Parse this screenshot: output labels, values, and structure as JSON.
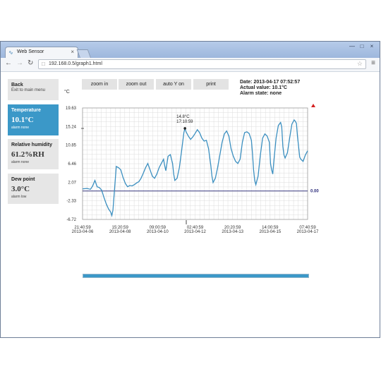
{
  "browser": {
    "tab_title": "Web Sensor",
    "url": "192.168.0.5/graph1.html"
  },
  "sidebar": {
    "back": {
      "title": "Back",
      "subtitle": "Exit to main menu"
    },
    "items": [
      {
        "title": "Temperature",
        "value": "10.1°C",
        "alarm": "alarm none",
        "active": true
      },
      {
        "title": "Relative humidity",
        "value": "61.2%RH",
        "alarm": "alarm none",
        "active": false
      },
      {
        "title": "Dew point",
        "value": "3.0°C",
        "alarm": "alarm low",
        "active": false
      }
    ]
  },
  "toolbar": {
    "zoom_in": "zoom in",
    "zoom_out": "zoom out",
    "auto_y": "auto Y on",
    "print": "print"
  },
  "info": {
    "date": "Date: 2013-04-17 07:52:57",
    "actual": "Actual value: 10.1°C",
    "alarm_state": "Alarm state: none"
  },
  "colors": {
    "accent": "#3b98c8",
    "line": "#3b8fc0",
    "limit": "#2b2b7a",
    "alarm_marker": "#d42020"
  },
  "chart_data": {
    "type": "line",
    "ylabel": "°C",
    "ylim": [
      -6.72,
      19.63
    ],
    "y_ticks": [
      "19.63",
      "15.24",
      "10.85",
      "6.46",
      "2.07",
      "-2.33",
      "-6.72"
    ],
    "x_ticks": [
      {
        "time": "21:40:59",
        "date": "2013-04-06"
      },
      {
        "time": "15:20:59",
        "date": "2013-04-08"
      },
      {
        "time": "09:00:59",
        "date": "2013-04-10"
      },
      {
        "time": "02:40:59",
        "date": "2013-04-12"
      },
      {
        "time": "20:20:59",
        "date": "2013-04-13"
      },
      {
        "time": "14:00:59",
        "date": "2013-04-15"
      },
      {
        "time": "07:40:59",
        "date": "2013-04-17"
      }
    ],
    "limit_value": 0.0,
    "limit_label": "0.00",
    "annotation": {
      "value": "14.8°C",
      "time": "17:10:59",
      "x": 0.455,
      "y": 14.8
    },
    "x_range": [
      0,
      1
    ],
    "grid": true,
    "series": [
      {
        "points": [
          [
            0.0,
            0.5
          ],
          [
            0.02,
            0.6
          ],
          [
            0.035,
            0.4
          ],
          [
            0.045,
            1.2
          ],
          [
            0.055,
            2.5
          ],
          [
            0.065,
            1.0
          ],
          [
            0.075,
            0.8
          ],
          [
            0.085,
            0.2
          ],
          [
            0.095,
            -1.5
          ],
          [
            0.105,
            -3.0
          ],
          [
            0.115,
            -4.2
          ],
          [
            0.125,
            -5.0
          ],
          [
            0.13,
            -5.8
          ],
          [
            0.135,
            -4.5
          ],
          [
            0.14,
            -1.0
          ],
          [
            0.145,
            2.5
          ],
          [
            0.15,
            5.8
          ],
          [
            0.16,
            5.5
          ],
          [
            0.17,
            5.0
          ],
          [
            0.18,
            3.2
          ],
          [
            0.19,
            1.8
          ],
          [
            0.2,
            1.0
          ],
          [
            0.21,
            1.3
          ],
          [
            0.22,
            1.2
          ],
          [
            0.23,
            1.5
          ],
          [
            0.24,
            1.9
          ],
          [
            0.25,
            2.2
          ],
          [
            0.26,
            3.0
          ],
          [
            0.27,
            4.2
          ],
          [
            0.28,
            5.5
          ],
          [
            0.29,
            6.5
          ],
          [
            0.3,
            5.0
          ],
          [
            0.31,
            3.5
          ],
          [
            0.32,
            3.0
          ],
          [
            0.33,
            4.0
          ],
          [
            0.34,
            5.5
          ],
          [
            0.35,
            6.5
          ],
          [
            0.36,
            7.5
          ],
          [
            0.365,
            6.0
          ],
          [
            0.37,
            4.8
          ],
          [
            0.38,
            8.2
          ],
          [
            0.39,
            8.6
          ],
          [
            0.4,
            6.5
          ],
          [
            0.405,
            4.0
          ],
          [
            0.41,
            2.5
          ],
          [
            0.42,
            3.0
          ],
          [
            0.43,
            5.5
          ],
          [
            0.44,
            9.5
          ],
          [
            0.45,
            13.8
          ],
          [
            0.455,
            14.8
          ],
          [
            0.46,
            14.0
          ],
          [
            0.47,
            13.0
          ],
          [
            0.48,
            12.2
          ],
          [
            0.49,
            12.8
          ],
          [
            0.5,
            13.6
          ],
          [
            0.51,
            14.5
          ],
          [
            0.52,
            13.8
          ],
          [
            0.53,
            12.5
          ],
          [
            0.54,
            11.8
          ],
          [
            0.55,
            12.0
          ],
          [
            0.56,
            10.0
          ],
          [
            0.57,
            6.0
          ],
          [
            0.575,
            3.5
          ],
          [
            0.58,
            2.0
          ],
          [
            0.59,
            3.0
          ],
          [
            0.6,
            5.5
          ],
          [
            0.61,
            8.5
          ],
          [
            0.62,
            11.5
          ],
          [
            0.63,
            13.5
          ],
          [
            0.64,
            14.2
          ],
          [
            0.65,
            13.0
          ],
          [
            0.66,
            10.0
          ],
          [
            0.67,
            8.2
          ],
          [
            0.68,
            7.0
          ],
          [
            0.69,
            6.5
          ],
          [
            0.7,
            7.5
          ],
          [
            0.71,
            11.5
          ],
          [
            0.72,
            13.8
          ],
          [
            0.73,
            14.0
          ],
          [
            0.74,
            13.6
          ],
          [
            0.75,
            12.0
          ],
          [
            0.755,
            9.0
          ],
          [
            0.76,
            5.0
          ],
          [
            0.765,
            2.5
          ],
          [
            0.77,
            1.5
          ],
          [
            0.78,
            3.5
          ],
          [
            0.79,
            8.5
          ],
          [
            0.8,
            12.5
          ],
          [
            0.81,
            13.5
          ],
          [
            0.82,
            13.0
          ],
          [
            0.83,
            11.5
          ],
          [
            0.835,
            6.5
          ],
          [
            0.84,
            5.0
          ],
          [
            0.845,
            4.0
          ],
          [
            0.85,
            7.0
          ],
          [
            0.86,
            12.5
          ],
          [
            0.87,
            15.5
          ],
          [
            0.88,
            16.2
          ],
          [
            0.885,
            15.2
          ],
          [
            0.89,
            10.5
          ],
          [
            0.895,
            8.5
          ],
          [
            0.9,
            7.8
          ],
          [
            0.91,
            9.0
          ],
          [
            0.92,
            12.5
          ],
          [
            0.93,
            15.8
          ],
          [
            0.94,
            16.8
          ],
          [
            0.945,
            16.5
          ],
          [
            0.95,
            16.0
          ],
          [
            0.955,
            13.0
          ],
          [
            0.96,
            10.5
          ],
          [
            0.965,
            8.0
          ],
          [
            0.97,
            7.5
          ],
          [
            0.98,
            7.0
          ],
          [
            0.99,
            8.5
          ],
          [
            1.0,
            9.5
          ]
        ]
      }
    ]
  }
}
